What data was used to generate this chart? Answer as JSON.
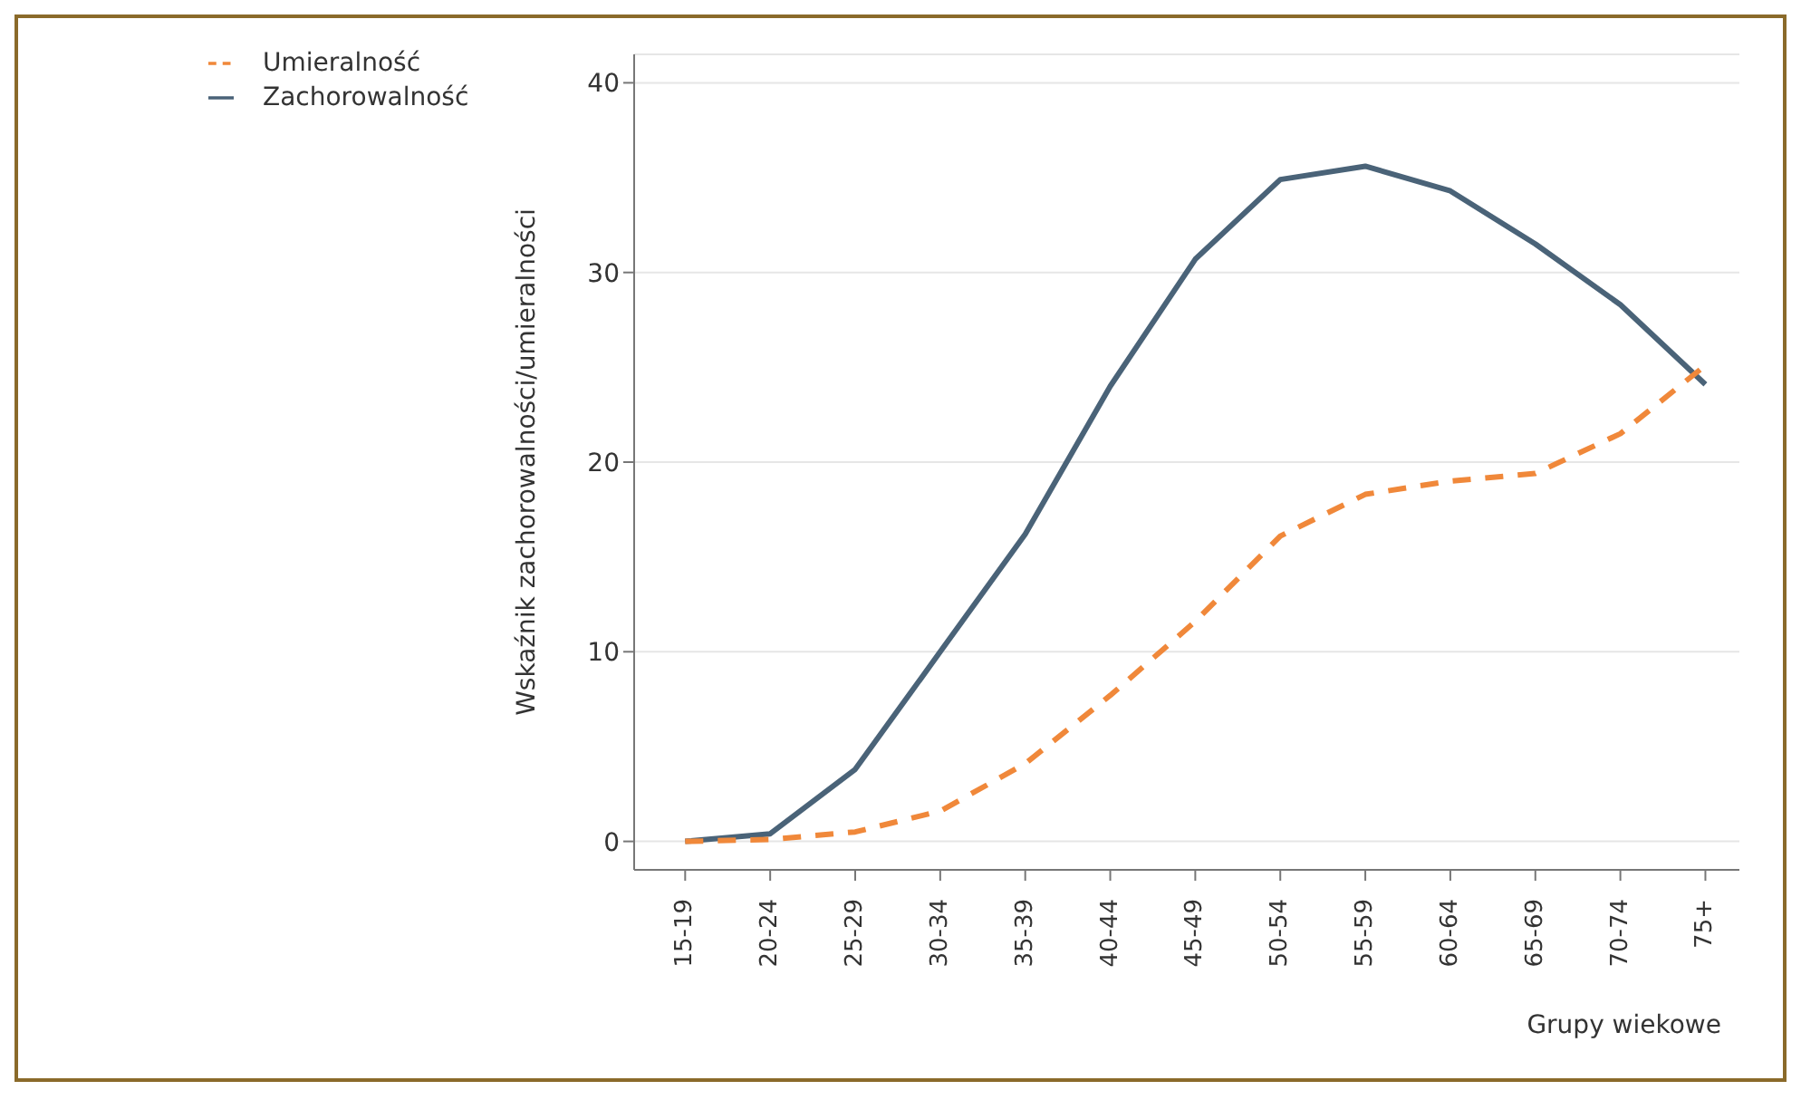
{
  "chart_data": {
    "type": "line",
    "xlabel": "Grupy wiekowe",
    "ylabel": "Wskaźnik zachorowalności/umieralności",
    "categories": [
      "15-19",
      "20-24",
      "25-29",
      "30-34",
      "35-39",
      "40-44",
      "45-49",
      "50-54",
      "55-59",
      "60-64",
      "65-69",
      "70-74",
      "75+"
    ],
    "series": [
      {
        "name": "Zachorowalność",
        "color": "#4a6378",
        "line_style": "solid",
        "values": [
          0,
          0.4,
          3.8,
          10,
          16.2,
          24,
          30.7,
          34.9,
          35.6,
          34.3,
          31.5,
          28.3,
          24.1
        ]
      },
      {
        "name": "Umieralność",
        "color": "#f0883a",
        "line_style": "dashed",
        "values": [
          0,
          0.1,
          0.5,
          1.6,
          4.1,
          7.7,
          11.6,
          16.1,
          18.3,
          19,
          19.4,
          21.5,
          25.1
        ]
      }
    ],
    "ylim": [
      -1.5,
      41.5
    ],
    "yticks": [
      0,
      10,
      20,
      30,
      40
    ],
    "grid": "y",
    "legend": "top left",
    "marker": "none"
  }
}
